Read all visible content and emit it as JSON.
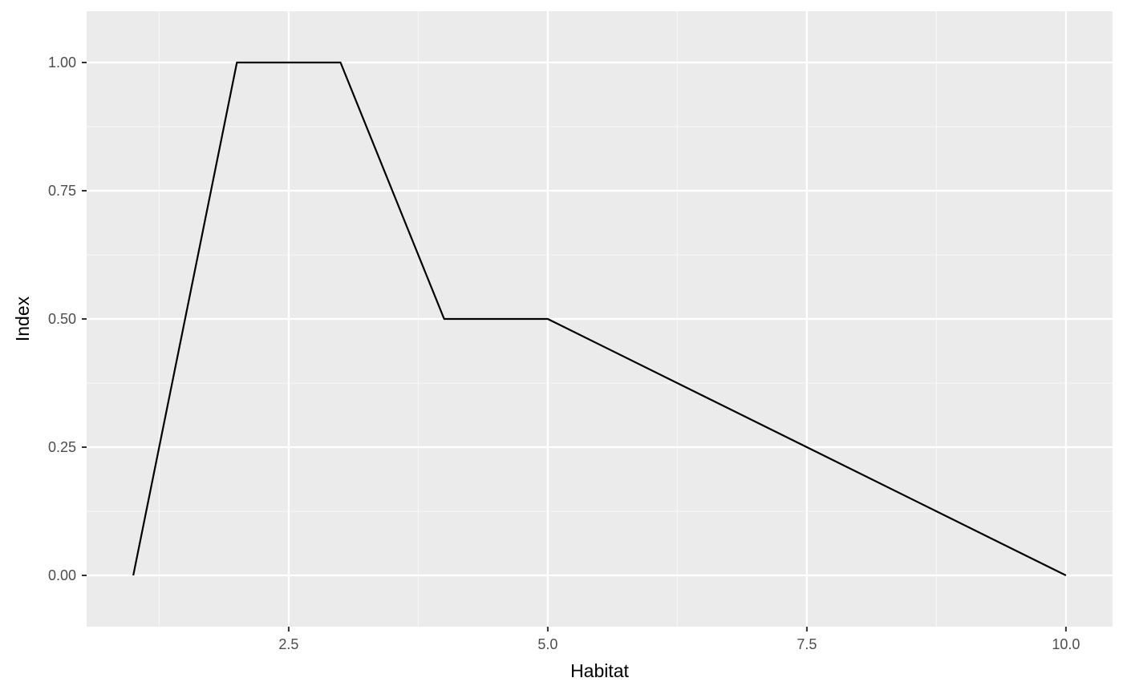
{
  "chart_data": {
    "type": "line",
    "title": "",
    "xlabel": "Habitat",
    "ylabel": "Index",
    "xlim": [
      0.55,
      10.45
    ],
    "ylim": [
      -0.1,
      1.1
    ],
    "x_ticks": [
      2.5,
      5.0,
      7.5,
      10.0
    ],
    "x_tick_labels": [
      "2.5",
      "5.0",
      "7.5",
      "10.0"
    ],
    "x_minor_ticks": [
      1.25,
      3.75,
      6.25,
      8.75
    ],
    "y_ticks": [
      0.0,
      0.25,
      0.5,
      0.75,
      1.0
    ],
    "y_tick_labels": [
      "0.00",
      "0.25",
      "0.50",
      "0.75",
      "1.00"
    ],
    "y_minor_ticks": [
      0.125,
      0.375,
      0.625,
      0.875
    ],
    "grid": true,
    "legend": "none",
    "series": [
      {
        "x": [
          1,
          2,
          3,
          4,
          5,
          10
        ],
        "y": [
          0,
          1,
          1,
          0.5,
          0.5,
          0
        ]
      }
    ]
  },
  "colors": {
    "panel_background": "#ebebeb",
    "grid_major": "#ffffff",
    "grid_minor": "#f7f7f7",
    "line": "#000000",
    "tick_text": "#4d4d4d",
    "tick_mark": "#333333",
    "axis_title": "#000000"
  }
}
